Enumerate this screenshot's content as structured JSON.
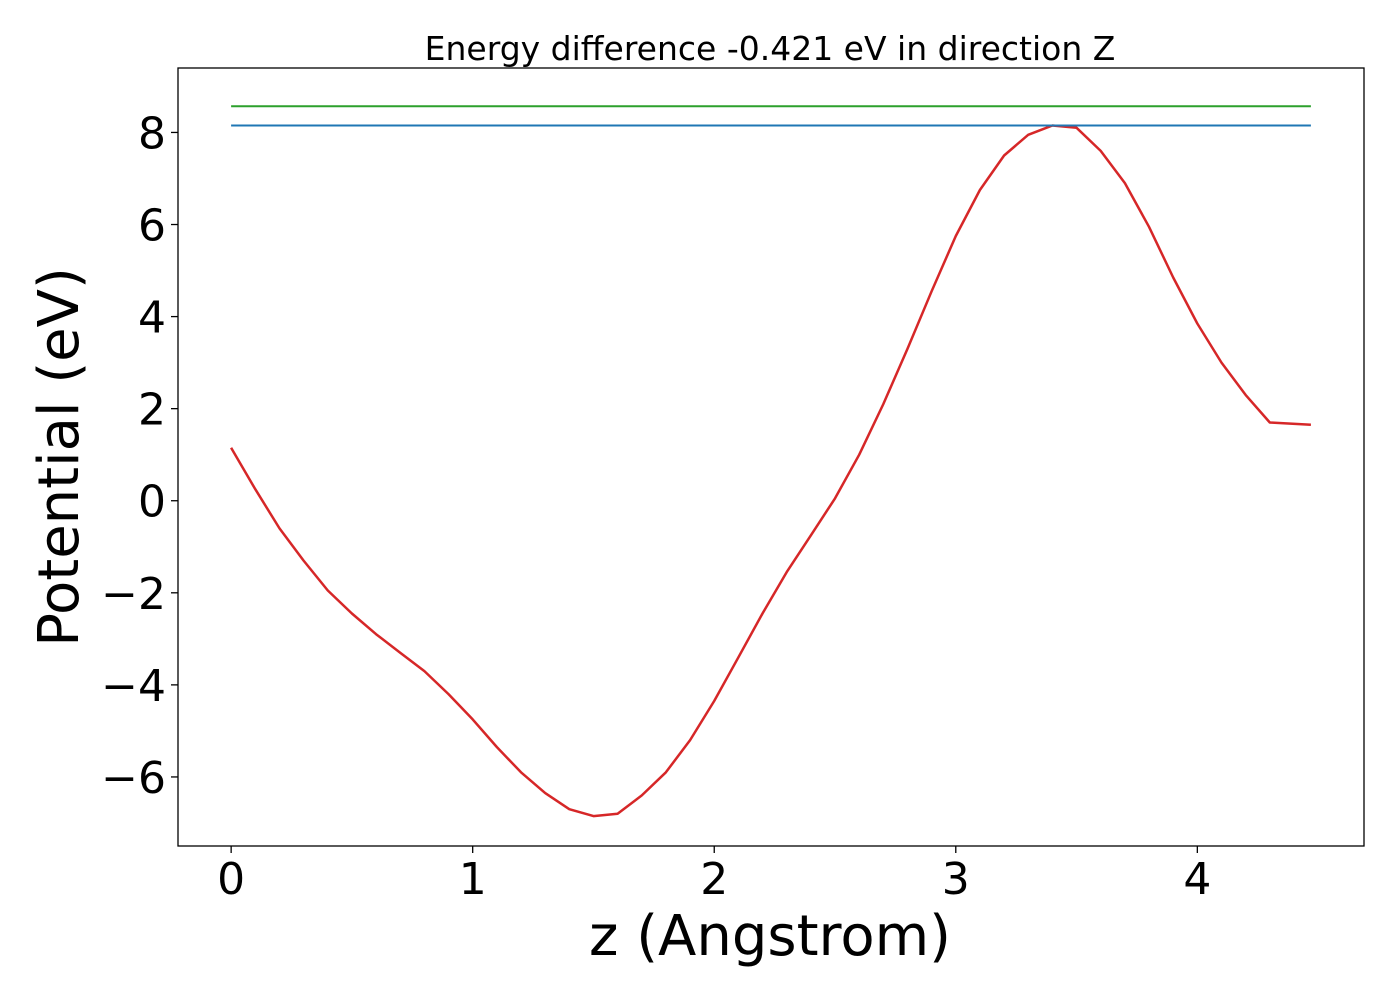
{
  "chart_data": {
    "type": "line",
    "title": "Energy difference -0.421 eV in direction Z",
    "xlabel": "z (Angstrom)",
    "ylabel": "Potential (eV)",
    "xlim": [
      -0.22,
      4.69
    ],
    "ylim": [
      -7.5,
      9.4
    ],
    "xticks": [
      0,
      1,
      2,
      3,
      4
    ],
    "xtick_labels": [
      "0",
      "1",
      "2",
      "3",
      "4"
    ],
    "yticks": [
      -6,
      -4,
      -2,
      0,
      2,
      4,
      6,
      8
    ],
    "ytick_labels": [
      "−6",
      "−4",
      "−2",
      "0",
      "2",
      "4",
      "6",
      "8"
    ],
    "grid": false,
    "series": [
      {
        "color": "#d62728",
        "x": [
          0,
          0.1,
          0.2,
          0.3,
          0.4,
          0.5,
          0.6,
          0.7,
          0.8,
          0.9,
          1.0,
          1.1,
          1.2,
          1.3,
          1.4,
          1.5,
          1.6,
          1.7,
          1.8,
          1.9,
          2.0,
          2.1,
          2.2,
          2.3,
          2.4,
          2.5,
          2.6,
          2.7,
          2.8,
          2.9,
          3.0,
          3.1,
          3.2,
          3.3,
          3.4,
          3.5,
          3.6,
          3.7,
          3.8,
          3.9,
          4.0,
          4.1,
          4.2,
          4.3,
          4.47
        ],
        "y": [
          1.15,
          0.25,
          -0.6,
          -1.3,
          -1.95,
          -2.45,
          -2.9,
          -3.3,
          -3.7,
          -4.2,
          -4.75,
          -5.35,
          -5.9,
          -6.35,
          -6.7,
          -6.85,
          -6.8,
          -6.4,
          -5.9,
          -5.2,
          -4.35,
          -3.4,
          -2.45,
          -1.55,
          -0.75,
          0.05,
          1.0,
          2.1,
          3.3,
          4.55,
          5.75,
          6.75,
          7.5,
          7.95,
          8.15,
          8.1,
          7.6,
          6.9,
          5.95,
          4.85,
          3.85,
          3.0,
          2.3,
          1.7,
          1.65
        ]
      },
      {
        "color": "#1f77b4",
        "x": [
          0,
          4.47
        ],
        "y": [
          8.15,
          8.15
        ]
      },
      {
        "color": "#2ca02c",
        "x": [
          0,
          4.47
        ],
        "y": [
          8.57,
          8.57
        ]
      }
    ]
  }
}
